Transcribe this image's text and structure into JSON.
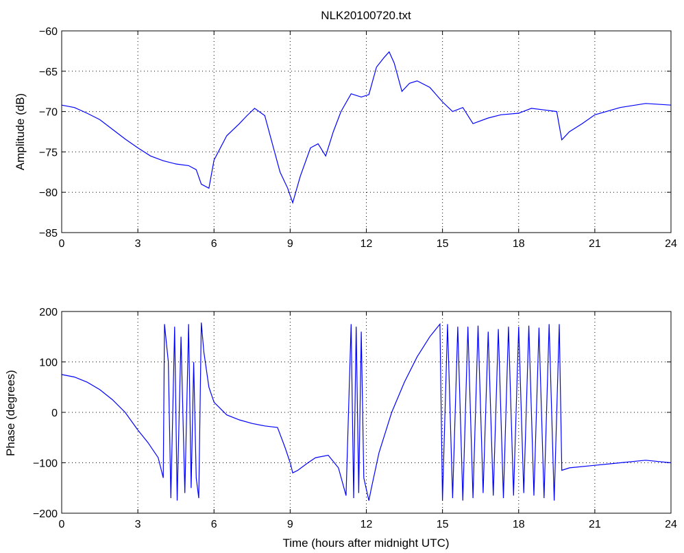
{
  "chart_data": [
    {
      "type": "line",
      "title": "NLK20100720.txt",
      "xlabel": "",
      "ylabel": "Amplitude (dB)",
      "xlim": [
        0,
        24
      ],
      "ylim": [
        -85,
        -60
      ],
      "xticks": [
        "0",
        "3",
        "6",
        "9",
        "12",
        "15",
        "18",
        "21",
        "24"
      ],
      "yticks": [
        "−85",
        "−80",
        "−75",
        "−70",
        "−65",
        "−60"
      ],
      "grid": true,
      "line_color": "#0000ff",
      "x": [
        0,
        0.5,
        1,
        1.5,
        2,
        2.5,
        3,
        3.5,
        4,
        4.5,
        5,
        5.3,
        5.5,
        5.8,
        6,
        6.5,
        7,
        7.3,
        7.6,
        8,
        8.3,
        8.6,
        8.9,
        9.1,
        9.4,
        9.8,
        10.1,
        10.4,
        10.7,
        11,
        11.4,
        11.8,
        12.1,
        12.4,
        12.7,
        12.9,
        13.1,
        13.4,
        13.7,
        14,
        14.5,
        15,
        15.4,
        15.8,
        16.2,
        16.8,
        17.3,
        18,
        18.5,
        19,
        19.5,
        19.7,
        20,
        20.5,
        21,
        22,
        23,
        24
      ],
      "y": [
        -69.2,
        -69.5,
        -70.2,
        -71,
        -72.2,
        -73.4,
        -74.5,
        -75.5,
        -76.1,
        -76.5,
        -76.7,
        -77.2,
        -79,
        -79.5,
        -76,
        -73,
        -71.5,
        -70.5,
        -69.6,
        -70.5,
        -74,
        -77.5,
        -79.5,
        -81.3,
        -78,
        -74.5,
        -74,
        -75.5,
        -72.5,
        -70,
        -67.8,
        -68.2,
        -67.9,
        -64.5,
        -63.3,
        -62.6,
        -64,
        -67.5,
        -66.5,
        -66.2,
        -67,
        -68.8,
        -70,
        -69.5,
        -71.5,
        -70.8,
        -70.4,
        -70.2,
        -69.6,
        -69.8,
        -70,
        -73.5,
        -72.5,
        -71.5,
        -70.4,
        -69.5,
        -69,
        -69.2
      ]
    },
    {
      "type": "line",
      "title": "",
      "xlabel": "Time (hours after midnight UTC)",
      "ylabel": "Phase (degrees)",
      "xlim": [
        0,
        24
      ],
      "ylim": [
        -200,
        200
      ],
      "xticks": [
        "0",
        "3",
        "6",
        "9",
        "12",
        "15",
        "18",
        "21",
        "24"
      ],
      "yticks": [
        "−200",
        "−100",
        "0",
        "100",
        "200"
      ],
      "grid": true,
      "line_color": "#0000ff",
      "x": [
        0,
        0.5,
        1,
        1.5,
        2,
        2.5,
        3,
        3.4,
        3.8,
        4.0,
        4.05,
        4.2,
        4.3,
        4.45,
        4.55,
        4.7,
        4.85,
        5.0,
        5.1,
        5.2,
        5.3,
        5.4,
        5.5,
        5.6,
        5.8,
        6.0,
        6.5,
        7,
        7.5,
        8,
        8.5,
        8.8,
        9.0,
        9.1,
        9.3,
        9.7,
        10.0,
        10.5,
        10.9,
        11.2,
        11.4,
        11.5,
        11.6,
        11.7,
        11.8,
        11.9,
        12.1,
        12.2,
        12.5,
        13,
        13.5,
        14,
        14.5,
        14.9,
        15.0,
        15.2,
        15.4,
        15.6,
        15.8,
        16.0,
        16.2,
        16.4,
        16.6,
        16.8,
        17.0,
        17.2,
        17.4,
        17.6,
        17.8,
        18.0,
        18.2,
        18.4,
        18.6,
        18.8,
        19.0,
        19.2,
        19.4,
        19.6,
        19.7,
        20,
        21,
        22,
        23,
        24
      ],
      "y": [
        75,
        70,
        60,
        45,
        25,
        0,
        -35,
        -60,
        -90,
        -130,
        175,
        100,
        -170,
        170,
        -175,
        150,
        -160,
        175,
        -150,
        100,
        -130,
        -170,
        178,
        120,
        50,
        20,
        -5,
        -15,
        -22,
        -27,
        -30,
        -70,
        -100,
        -120,
        -115,
        -100,
        -90,
        -85,
        -110,
        -165,
        175,
        -170,
        170,
        -160,
        160,
        -130,
        -175,
        -150,
        -80,
        0,
        60,
        110,
        150,
        175,
        -175,
        175,
        -170,
        170,
        -175,
        170,
        -170,
        172,
        -160,
        160,
        -165,
        165,
        -170,
        170,
        -165,
        170,
        -160,
        172,
        -165,
        168,
        -170,
        175,
        -175,
        175,
        -115,
        -110,
        -105,
        -100,
        -95,
        -100
      ]
    }
  ]
}
